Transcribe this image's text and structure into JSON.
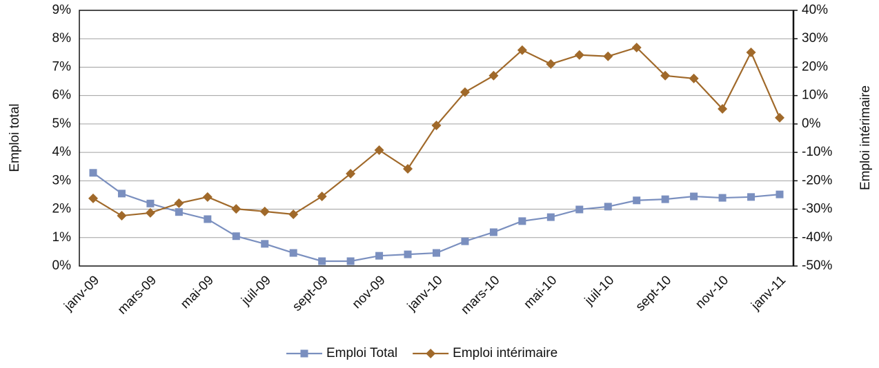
{
  "chart_data": {
    "type": "line",
    "categories": [
      "janv-09",
      null,
      "mars-09",
      null,
      "mai-09",
      null,
      "juil-09",
      null,
      "sept-09",
      null,
      "nov-09",
      null,
      "janv-10",
      null,
      "mars-10",
      null,
      "mai-10",
      null,
      "juil-10",
      null,
      "sept-10",
      null,
      "nov-10",
      null,
      "janv-11"
    ],
    "y_label": "Emploi total",
    "y2_label": "Emploi intérimaire",
    "series": [
      {
        "name": "Emploi Total",
        "color": "#7a8fbf",
        "marker": "square",
        "values": [
          3.28,
          2.55,
          2.2,
          1.9,
          1.65,
          1.05,
          0.78,
          0.46,
          0.17,
          0.17,
          0.36,
          0.41,
          0.46,
          0.87,
          1.19,
          1.58,
          1.72,
          1.99,
          2.09,
          2.31,
          2.35,
          2.45,
          2.4,
          2.43,
          2.52
        ]
      },
      {
        "name": "Emploi intérimaire",
        "color": "#a0692a",
        "marker": "diamond",
        "axis": "y2",
        "values": [
          -26.2,
          -32.3,
          -31.3,
          -27.9,
          -25.7,
          -29.9,
          -30.8,
          -31.8,
          -25.5,
          -17.5,
          -9.2,
          -15.8,
          -0.5,
          11.2,
          17,
          26,
          21.1,
          24.3,
          23.8,
          26.9,
          17,
          16,
          5.3,
          25.2,
          2.2
        ]
      }
    ],
    "ylim": [
      0,
      9
    ],
    "yticks": [
      {
        "value": 0,
        "label": "0%"
      },
      {
        "value": 1,
        "label": "1%"
      },
      {
        "value": 2,
        "label": "2%"
      },
      {
        "value": 3,
        "label": "3%"
      },
      {
        "value": 4,
        "label": "4%"
      },
      {
        "value": 5,
        "label": "5%"
      },
      {
        "value": 6,
        "label": "6%"
      },
      {
        "value": 7,
        "label": "7%"
      },
      {
        "value": 8,
        "label": "8%"
      },
      {
        "value": 9,
        "label": "9%"
      }
    ],
    "y2lim": [
      -50,
      40
    ],
    "y2ticks": [
      {
        "value": -50,
        "label": "-50%"
      },
      {
        "value": -40,
        "label": "-40%"
      },
      {
        "value": -30,
        "label": "-30%"
      },
      {
        "value": -20,
        "label": "-20%"
      },
      {
        "value": -10,
        "label": "-10%"
      },
      {
        "value": 0,
        "label": "0%"
      },
      {
        "value": 10,
        "label": "10%"
      },
      {
        "value": 20,
        "label": "20%"
      },
      {
        "value": 30,
        "label": "30%"
      },
      {
        "value": 40,
        "label": "40%"
      }
    ],
    "grid": true,
    "legend": "bottom"
  }
}
